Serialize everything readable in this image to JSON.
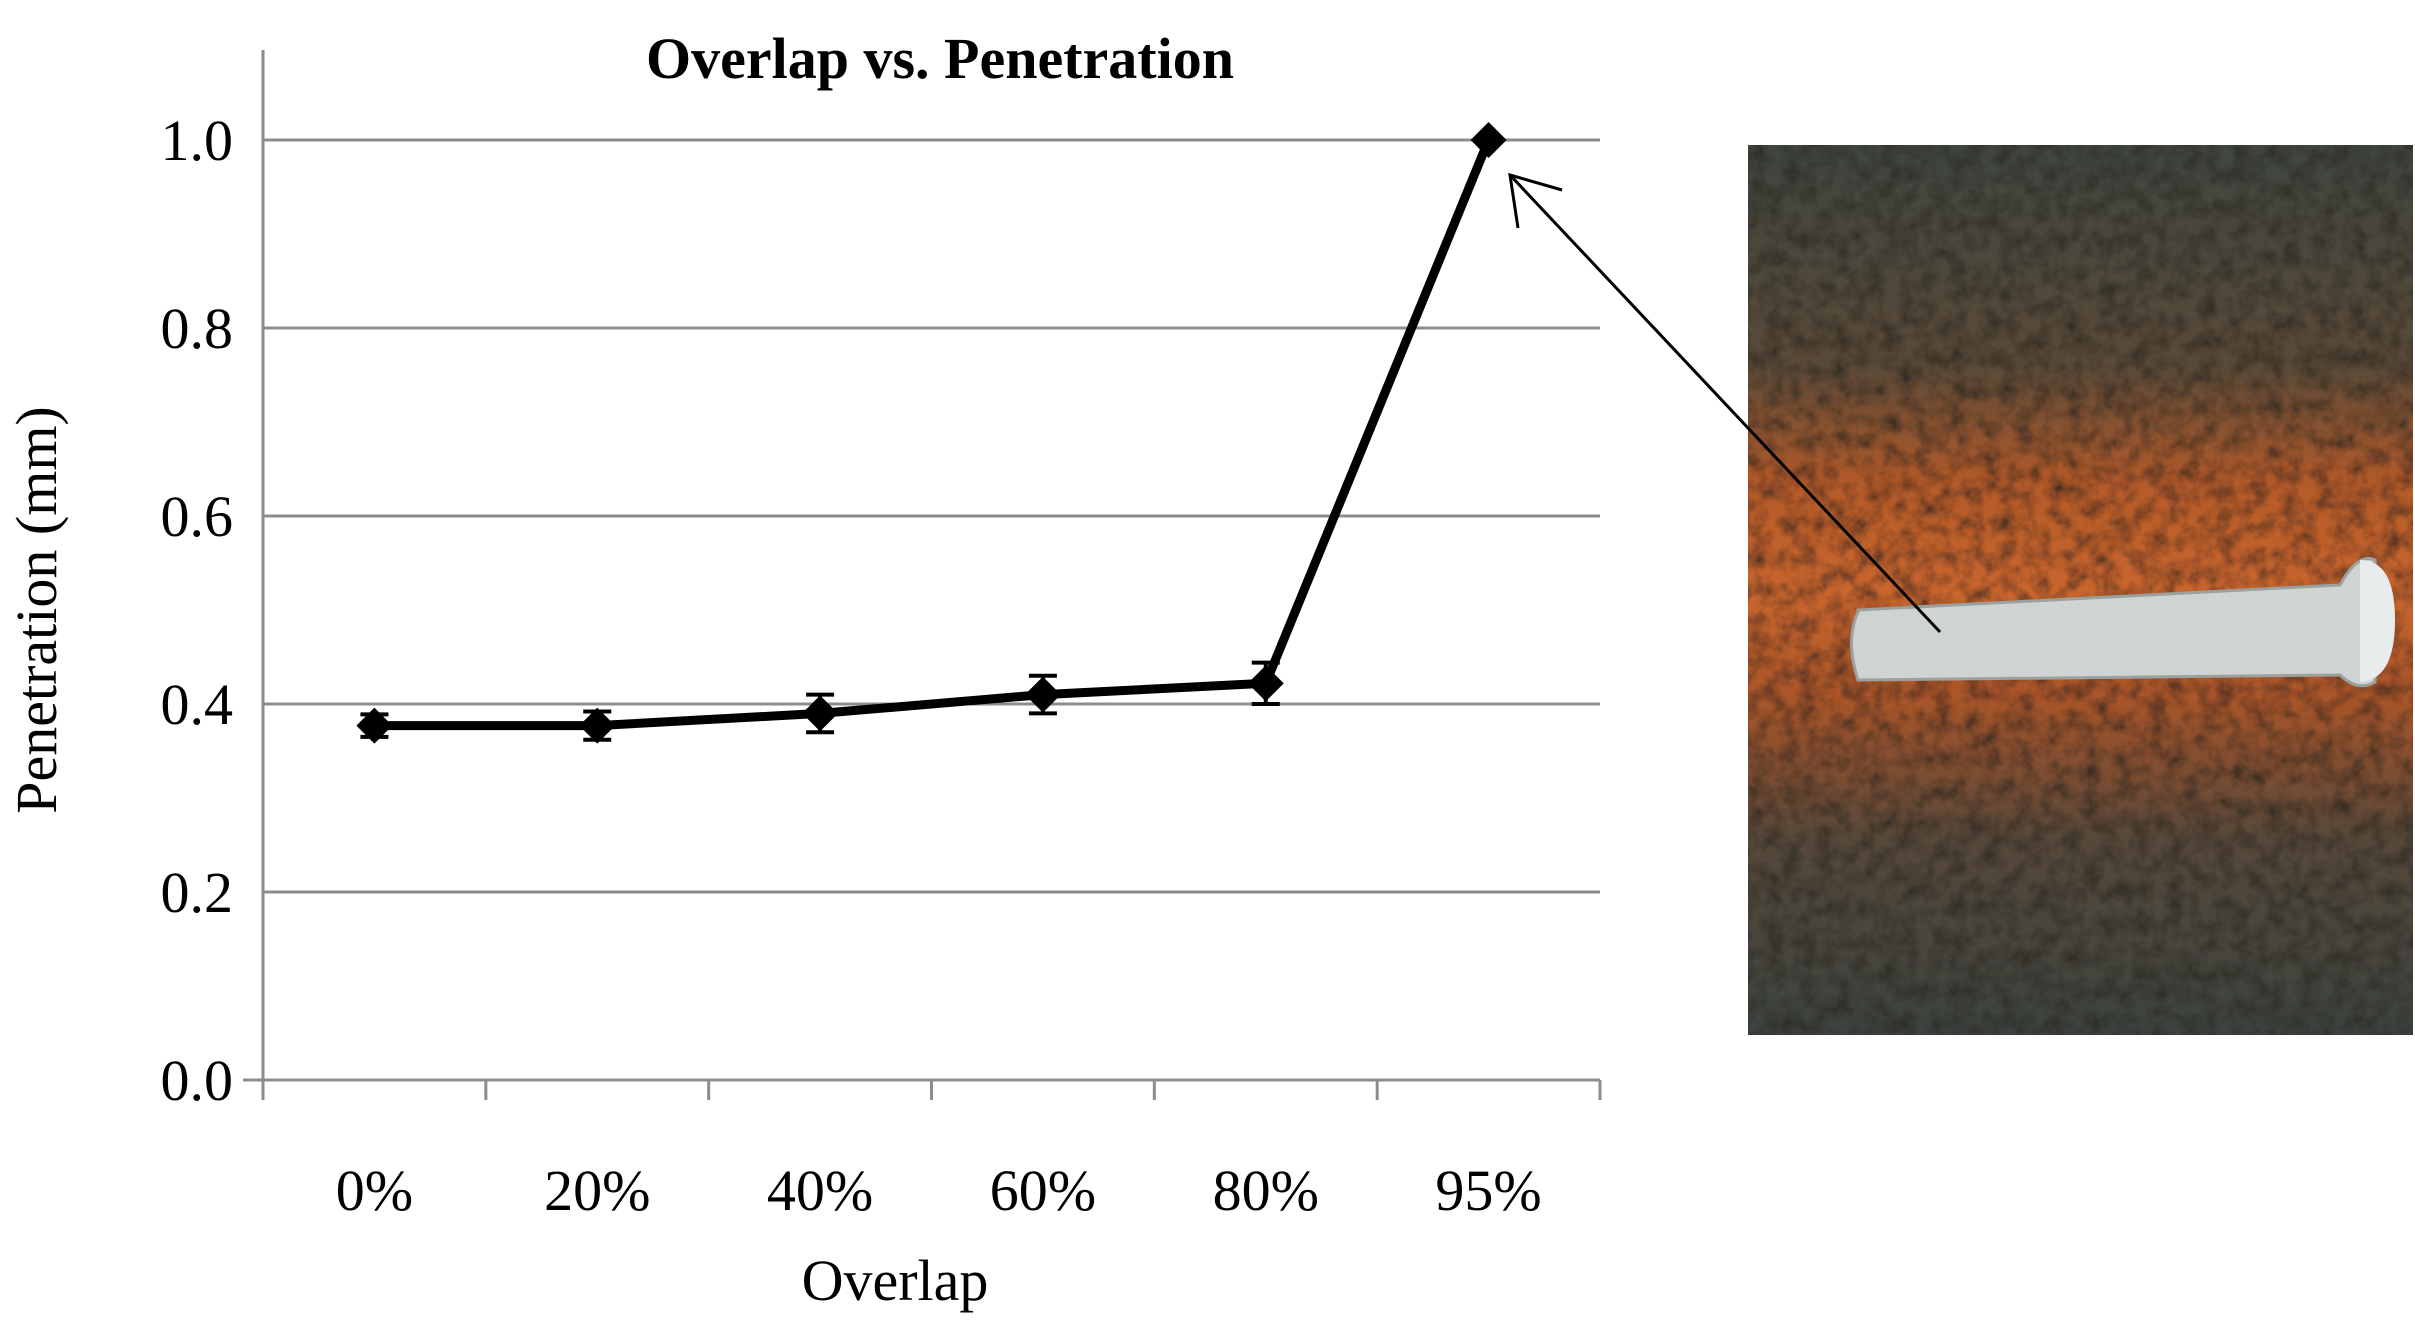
{
  "chart_data": {
    "type": "line",
    "title": "Overlap vs. Penetration",
    "xlabel": "Overlap",
    "ylabel": "Penetration (mm)",
    "categories": [
      "0%",
      "20%",
      "40%",
      "60%",
      "80%",
      "95%"
    ],
    "series": [
      {
        "values": [
          0.377,
          0.377,
          0.39,
          0.41,
          0.422,
          1.0
        ],
        "error": [
          0.012,
          0.015,
          0.02,
          0.02,
          0.022,
          0.0
        ]
      }
    ],
    "ylim": [
      0,
      1.0
    ],
    "yticks": [
      "0.0",
      "0.2",
      "0.4",
      "0.6",
      "0.8",
      "1.0"
    ],
    "grid": true,
    "legend": "none",
    "line_color": "#000000",
    "annotation": {
      "type": "arrow",
      "target": "95%"
    },
    "inset_image": {
      "subject": "weld-bead-photo",
      "colors": [
        "#8a4a24",
        "#b8612f",
        "#4e4f45",
        "#cfd4d3"
      ]
    }
  }
}
